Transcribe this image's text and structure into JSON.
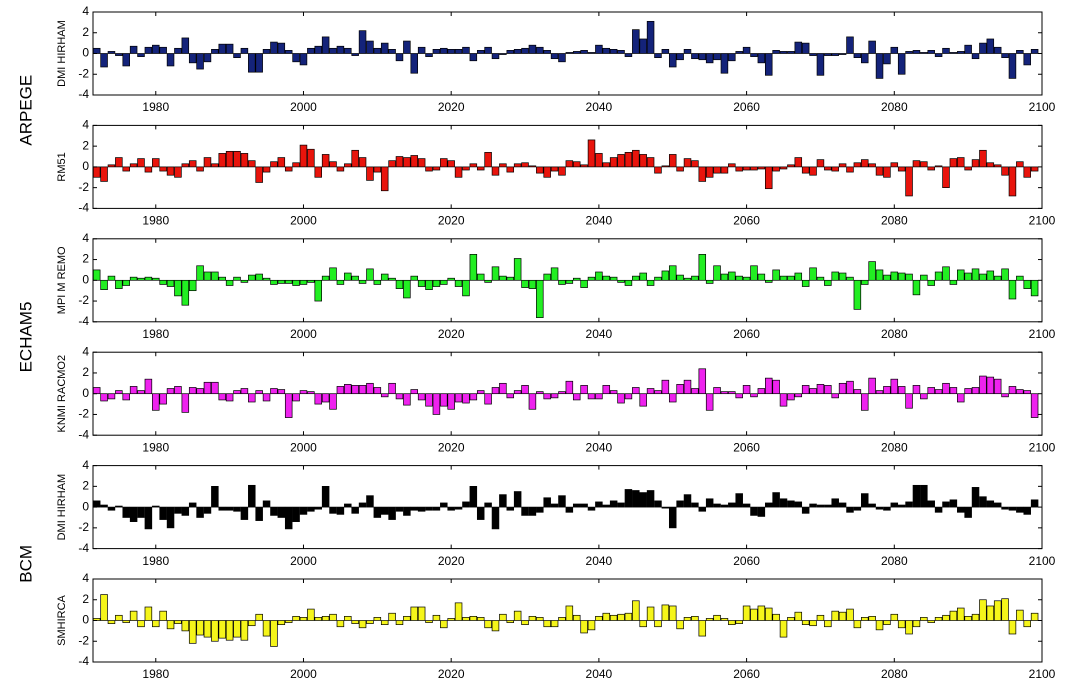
{
  "chart_data": {
    "type": "bar",
    "groups": [
      "ARPEGE",
      "ECHAM5",
      "BCM"
    ],
    "x": [
      1972,
      1973,
      1974,
      1975,
      1976,
      1977,
      1978,
      1979,
      1980,
      1981,
      1982,
      1983,
      1984,
      1985,
      1986,
      1987,
      1988,
      1989,
      1990,
      1991,
      1992,
      1993,
      1994,
      1995,
      1996,
      1997,
      1998,
      1999,
      2000,
      2001,
      2002,
      2003,
      2004,
      2005,
      2006,
      2007,
      2008,
      2009,
      2010,
      2011,
      2012,
      2013,
      2014,
      2015,
      2016,
      2017,
      2018,
      2019,
      2020,
      2021,
      2022,
      2023,
      2024,
      2025,
      2026,
      2027,
      2028,
      2029,
      2030,
      2031,
      2032,
      2033,
      2034,
      2035,
      2036,
      2037,
      2038,
      2039,
      2040,
      2041,
      2042,
      2043,
      2044,
      2045,
      2046,
      2047,
      2048,
      2049,
      2050,
      2051,
      2052,
      2053,
      2054,
      2055,
      2056,
      2057,
      2058,
      2059,
      2060,
      2061,
      2062,
      2063,
      2064,
      2065,
      2066,
      2067,
      2068,
      2069,
      2070,
      2071,
      2072,
      2073,
      2074,
      2075,
      2076,
      2077,
      2078,
      2079,
      2080,
      2081,
      2082,
      2083,
      2084,
      2085,
      2086,
      2087,
      2088,
      2089,
      2090,
      2091,
      2092,
      2093,
      2094,
      2095,
      2096,
      2097,
      2098,
      2099
    ],
    "xlim": [
      1971.5,
      2100
    ],
    "xticks": [
      1980,
      2000,
      2020,
      2040,
      2060,
      2080,
      2100
    ],
    "ylim": [
      -4,
      4
    ],
    "yticks": [
      -4,
      -2,
      0,
      2,
      4
    ],
    "series": [
      {
        "name": "DMI HIRHAM",
        "color": "#14237a",
        "values": [
          0.5,
          -1.3,
          0.2,
          -0.2,
          -1.2,
          0.7,
          -0.3,
          0.6,
          0.8,
          0.6,
          -1.2,
          0.5,
          1.5,
          -0.9,
          -1.5,
          -0.8,
          0.4,
          0.9,
          0.9,
          -0.4,
          0.5,
          -1.8,
          -1.8,
          0.4,
          1.1,
          1.0,
          0.3,
          -0.8,
          -1.1,
          0.5,
          0.7,
          1.6,
          0.5,
          0.7,
          0.5,
          -0.2,
          2.2,
          1.2,
          0.5,
          1.0,
          0.4,
          -0.7,
          1.2,
          -1.9,
          0.6,
          -0.3,
          0.4,
          0.5,
          0.4,
          0.4,
          0.6,
          -0.7,
          0.3,
          0.6,
          -0.5,
          -0.1,
          0.3,
          0.4,
          0.5,
          0.8,
          0.6,
          0.3,
          -0.5,
          -0.8,
          0.1,
          0.2,
          0.3,
          0.1,
          0.8,
          0.5,
          0.4,
          0.3,
          -0.3,
          2.3,
          1.4,
          3.1,
          -0.4,
          0.4,
          -1.3,
          -0.6,
          0.4,
          -0.5,
          -0.6,
          -0.9,
          -0.6,
          -1.9,
          -0.7,
          0.2,
          0.6,
          -0.3,
          -0.9,
          -2.1,
          0.3,
          0.2,
          0.2,
          1.1,
          1.0,
          -0.2,
          -2.1,
          -0.2,
          -0.2,
          -0.1,
          1.6,
          -0.4,
          -0.9,
          1.2,
          -2.4,
          -1.0,
          0.6,
          -2.0,
          0.2,
          0.3,
          0.1,
          0.3,
          -0.3,
          0.5,
          0.1,
          0.2,
          0.8,
          -0.5,
          1.0,
          1.4,
          0.6,
          -0.4,
          -2.4,
          0.3,
          -1.1,
          0.4
        ]
      },
      {
        "name": "RM51",
        "color": "#e8140c",
        "values": [
          -1.0,
          -1.4,
          0.2,
          0.9,
          -0.4,
          0.3,
          0.8,
          -0.5,
          0.8,
          -0.4,
          -0.8,
          -1.0,
          0.3,
          0.6,
          -0.4,
          0.9,
          0.3,
          1.3,
          1.5,
          1.5,
          1.3,
          0.6,
          -1.5,
          -0.5,
          0.5,
          0.9,
          -0.4,
          0.4,
          2.1,
          1.7,
          -1.0,
          1.2,
          0.5,
          -0.4,
          0.3,
          1.6,
          0.9,
          -1.3,
          -0.5,
          -2.3,
          0.6,
          1.0,
          0.9,
          1.1,
          0.8,
          -0.4,
          -0.3,
          0.8,
          0.6,
          -1.0,
          -0.3,
          0.3,
          -0.3,
          1.4,
          -0.8,
          0.3,
          -0.5,
          0.3,
          0.4,
          0.1,
          -0.6,
          -1.0,
          -0.4,
          -0.8,
          0.6,
          0.5,
          0.2,
          2.6,
          1.3,
          0.4,
          0.9,
          1.2,
          1.4,
          1.6,
          1.2,
          0.9,
          -0.6,
          0.1,
          1.2,
          -0.4,
          0.8,
          0.6,
          -1.4,
          -1.0,
          -0.6,
          -0.6,
          0.3,
          -0.4,
          -0.3,
          -0.3,
          -0.2,
          -2.1,
          -0.4,
          -0.2,
          0.2,
          0.9,
          -0.6,
          -0.8,
          0.7,
          -0.3,
          -0.4,
          0.3,
          -0.5,
          0.4,
          0.7,
          0.3,
          -0.8,
          -1.0,
          0.4,
          -0.4,
          -2.8,
          0.6,
          0.5,
          -0.3,
          0.1,
          -2.0,
          0.8,
          0.9,
          -0.3,
          0.7,
          1.6,
          0.4,
          0.2,
          -0.8,
          -2.8,
          0.5,
          -1.0,
          -0.4
        ]
      },
      {
        "name": "MPI M REMO",
        "color": "#22ee22",
        "values": [
          1.0,
          -0.9,
          0.4,
          -0.8,
          -0.5,
          0.3,
          0.2,
          0.3,
          0.2,
          -0.4,
          -0.6,
          -1.5,
          -2.4,
          -1.0,
          1.4,
          0.8,
          0.8,
          0.3,
          -0.5,
          0.3,
          -0.2,
          0.5,
          0.6,
          0.2,
          -0.4,
          -0.3,
          -0.3,
          -0.5,
          -0.4,
          -0.2,
          -2.0,
          0.4,
          1.2,
          -0.4,
          0.7,
          0.4,
          -0.3,
          1.1,
          -0.4,
          0.6,
          0.2,
          -0.8,
          -1.7,
          0.4,
          -0.6,
          -0.9,
          -0.6,
          -0.4,
          0.2,
          -0.6,
          -1.5,
          2.5,
          0.6,
          -0.2,
          1.3,
          0.4,
          0.3,
          2.1,
          -0.7,
          -0.8,
          -3.6,
          0.6,
          1.2,
          -0.4,
          -0.3,
          0.2,
          -0.7,
          0.3,
          0.8,
          0.4,
          0.3,
          -0.2,
          -0.5,
          0.4,
          0.7,
          -0.5,
          0.3,
          0.9,
          1.4,
          0.5,
          0.2,
          0.4,
          2.5,
          -0.3,
          1.4,
          0.6,
          0.8,
          0.4,
          0.3,
          1.4,
          0.6,
          -0.2,
          1.0,
          0.4,
          0.4,
          0.7,
          -0.6,
          1.2,
          0.3,
          -0.5,
          0.8,
          0.7,
          0.3,
          -2.8,
          -0.4,
          1.8,
          1.0,
          0.5,
          0.8,
          0.7,
          0.6,
          -1.4,
          0.5,
          -0.5,
          0.8,
          1.3,
          -0.4,
          1.0,
          0.7,
          1.1,
          0.6,
          0.9,
          0.4,
          1.1,
          -1.8,
          0.4,
          -0.8,
          -1.5
        ]
      },
      {
        "name": "KNMI RACMO2",
        "color": "#ee22ee",
        "values": [
          0.6,
          -0.7,
          -0.5,
          0.3,
          -0.6,
          0.7,
          0.3,
          1.4,
          -1.6,
          -1.0,
          0.5,
          0.7,
          -1.8,
          0.6,
          0.5,
          1.1,
          1.1,
          -0.6,
          -0.7,
          0.3,
          0.5,
          -0.8,
          0.3,
          -0.7,
          0.5,
          0.4,
          -2.3,
          -0.7,
          0.3,
          0.2,
          -1.0,
          -0.8,
          -1.5,
          0.7,
          0.9,
          0.8,
          0.8,
          1.0,
          0.6,
          -0.3,
          1.0,
          -0.5,
          -1.1,
          0.4,
          -0.6,
          -1.2,
          -2.0,
          -1.2,
          -1.5,
          -0.8,
          -0.9,
          -0.6,
          0.3,
          -1.0,
          0.6,
          1.0,
          -0.4,
          0.3,
          0.8,
          -1.5,
          0.2,
          -0.5,
          -0.4,
          0.2,
          1.2,
          -0.6,
          0.8,
          -0.5,
          -0.5,
          0.8,
          0.3,
          -0.9,
          -0.5,
          0.6,
          -1.2,
          0.5,
          0.3,
          1.3,
          -0.8,
          0.9,
          1.3,
          0.5,
          2.4,
          -1.6,
          0.6,
          0.2,
          0.2,
          -0.4,
          0.8,
          -0.3,
          0.5,
          1.5,
          1.3,
          -1.2,
          -0.6,
          -0.3,
          0.8,
          0.5,
          0.9,
          0.8,
          -0.4,
          1.0,
          1.2,
          0.4,
          -1.6,
          1.5,
          0.3,
          0.7,
          1.4,
          0.7,
          -1.4,
          0.8,
          -0.5,
          0.6,
          0.4,
          1.0,
          0.6,
          -0.8,
          0.5,
          0.6,
          1.7,
          1.6,
          1.4,
          -0.3,
          0.7,
          0.4,
          0.3,
          -2.3
        ]
      },
      {
        "name": "DMI HIRHAM",
        "color": "#000000",
        "values": [
          0.6,
          0.2,
          -0.3,
          0.1,
          -1.0,
          -1.4,
          -1.0,
          -2.1,
          0.1,
          -1.2,
          -2.0,
          -0.6,
          -0.8,
          0.4,
          -1.0,
          -0.6,
          2.0,
          -0.3,
          -0.3,
          -0.4,
          -1.2,
          2.1,
          -1.3,
          0.6,
          -0.8,
          -1.0,
          -2.1,
          -1.4,
          -0.7,
          -0.4,
          -0.2,
          2.0,
          -0.6,
          -0.7,
          0.3,
          -0.6,
          0.4,
          1.1,
          -1.0,
          -0.7,
          -1.2,
          -0.4,
          -0.8,
          -0.3,
          -0.4,
          -0.3,
          -0.3,
          0.4,
          -0.3,
          -0.2,
          0.5,
          2.0,
          -1.2,
          0.4,
          -2.1,
          1.2,
          -0.3,
          1.5,
          -0.8,
          -0.8,
          -0.5,
          0.9,
          0.3,
          1.1,
          -0.5,
          0.3,
          0.3,
          -0.3,
          0.5,
          0.2,
          0.6,
          0.4,
          1.7,
          1.6,
          1.4,
          1.6,
          0.6,
          -0.1,
          -2.0,
          0.6,
          1.2,
          0.4,
          -0.4,
          0.8,
          0.3,
          0.2,
          0.4,
          1.3,
          0.3,
          -0.8,
          -0.9,
          0.4,
          1.4,
          0.8,
          0.6,
          0.5,
          -0.6,
          0.3,
          0.2,
          0.2,
          0.8,
          0.4,
          -0.5,
          -0.3,
          1.3,
          0.3,
          -0.2,
          -0.3,
          0.4,
          0.2,
          0.5,
          2.1,
          2.1,
          0.6,
          -0.5,
          0.5,
          0.7,
          -0.5,
          -1.0,
          1.9,
          1.0,
          0.6,
          0.4,
          -0.2,
          -0.3,
          -0.5,
          -0.7,
          0.7
        ]
      },
      {
        "name": "SMHIRCA",
        "color": "#f5f51a",
        "values": [
          0.2,
          2.5,
          -0.3,
          0.5,
          -0.2,
          0.9,
          -0.6,
          1.3,
          -0.6,
          0.9,
          -0.8,
          -0.3,
          -1.0,
          -2.2,
          -1.4,
          -1.6,
          -2.0,
          -1.7,
          -1.9,
          -1.6,
          -1.9,
          -0.5,
          0.6,
          -1.5,
          -2.5,
          -0.4,
          -0.2,
          0.4,
          0.3,
          1.1,
          0.3,
          0.4,
          0.6,
          -0.6,
          0.4,
          -0.3,
          -0.7,
          -0.3,
          0.3,
          -0.4,
          0.7,
          -0.4,
          0.4,
          1.3,
          1.3,
          -0.2,
          0.5,
          -0.7,
          0.2,
          1.7,
          0.3,
          0.4,
          0.3,
          -0.7,
          -1.0,
          0.6,
          -0.2,
          0.9,
          -0.4,
          0.4,
          0.3,
          -0.6,
          -0.6,
          0.3,
          1.4,
          0.5,
          -1.2,
          -0.9,
          0.4,
          0.7,
          0.5,
          0.6,
          0.7,
          1.9,
          -0.6,
          1.3,
          -0.6,
          1.5,
          1.4,
          -0.8,
          0.3,
          0.4,
          -1.5,
          0.2,
          0.5,
          0.2,
          -0.4,
          -0.3,
          1.4,
          1.1,
          1.4,
          1.2,
          0.6,
          -1.6,
          0.3,
          0.8,
          -0.4,
          -0.5,
          0.5,
          -0.6,
          0.9,
          0.8,
          1.1,
          -0.7,
          0.3,
          0.4,
          -0.9,
          -0.4,
          0.6,
          -0.7,
          -1.3,
          -0.6,
          0.3,
          -0.2,
          0.3,
          0.5,
          0.9,
          1.2,
          0.4,
          0.6,
          2.0,
          1.4,
          1.9,
          2.1,
          -1.3,
          1.0,
          -0.6,
          0.7
        ]
      }
    ]
  }
}
